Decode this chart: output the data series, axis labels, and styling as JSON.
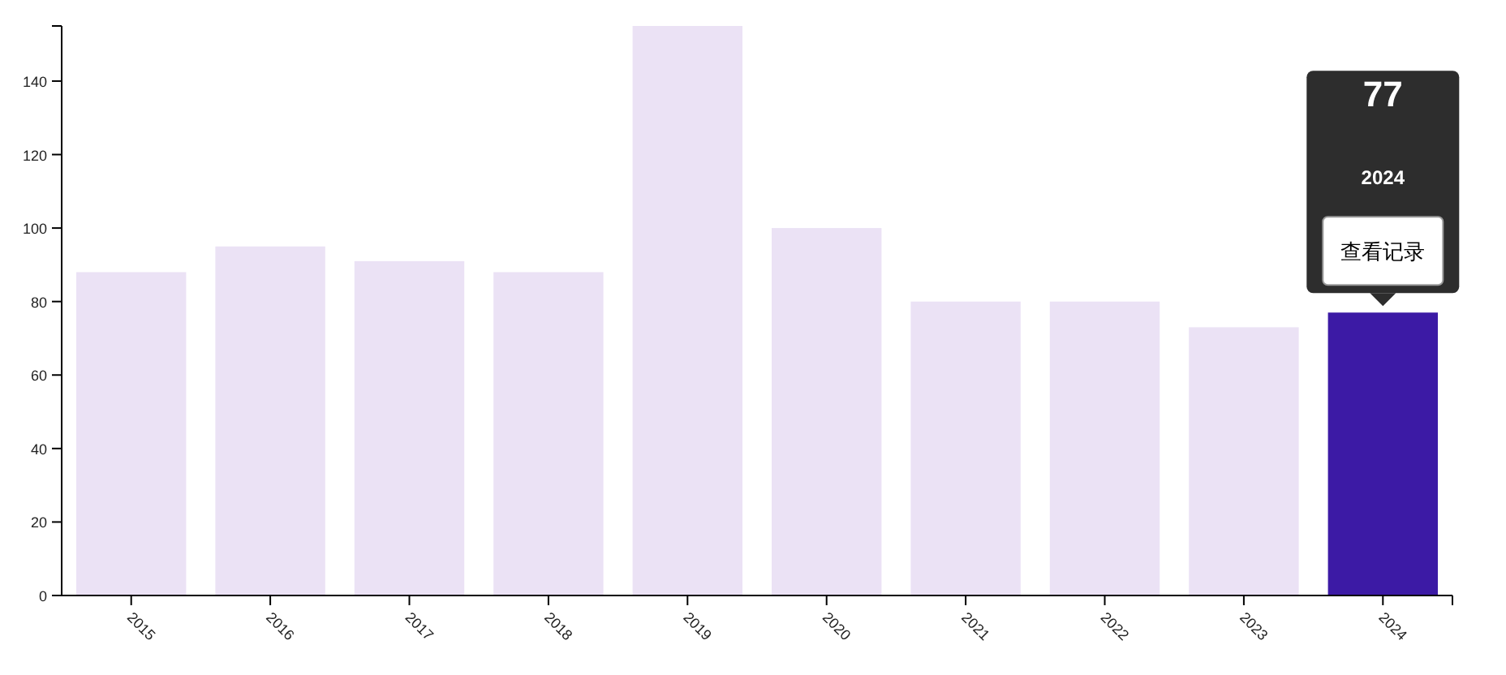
{
  "chart_data": {
    "type": "bar",
    "categories": [
      "2015",
      "2016",
      "2017",
      "2018",
      "2019",
      "2020",
      "2021",
      "2022",
      "2023",
      "2024"
    ],
    "values": [
      88,
      95,
      91,
      88,
      155,
      100,
      80,
      80,
      73,
      77
    ],
    "colors": [
      "#ebe2f5",
      "#ebe2f5",
      "#ebe2f5",
      "#ebe2f5",
      "#ebe2f5",
      "#ebe2f5",
      "#ebe2f5",
      "#ebe2f5",
      "#ebe2f5",
      "#3c1aa5"
    ],
    "ylim": [
      0,
      155
    ],
    "yticks": [
      0,
      20,
      40,
      60,
      80,
      100,
      120,
      140
    ],
    "grid": false,
    "annotations": [
      "77",
      "2024",
      "查看记录"
    ]
  }
}
